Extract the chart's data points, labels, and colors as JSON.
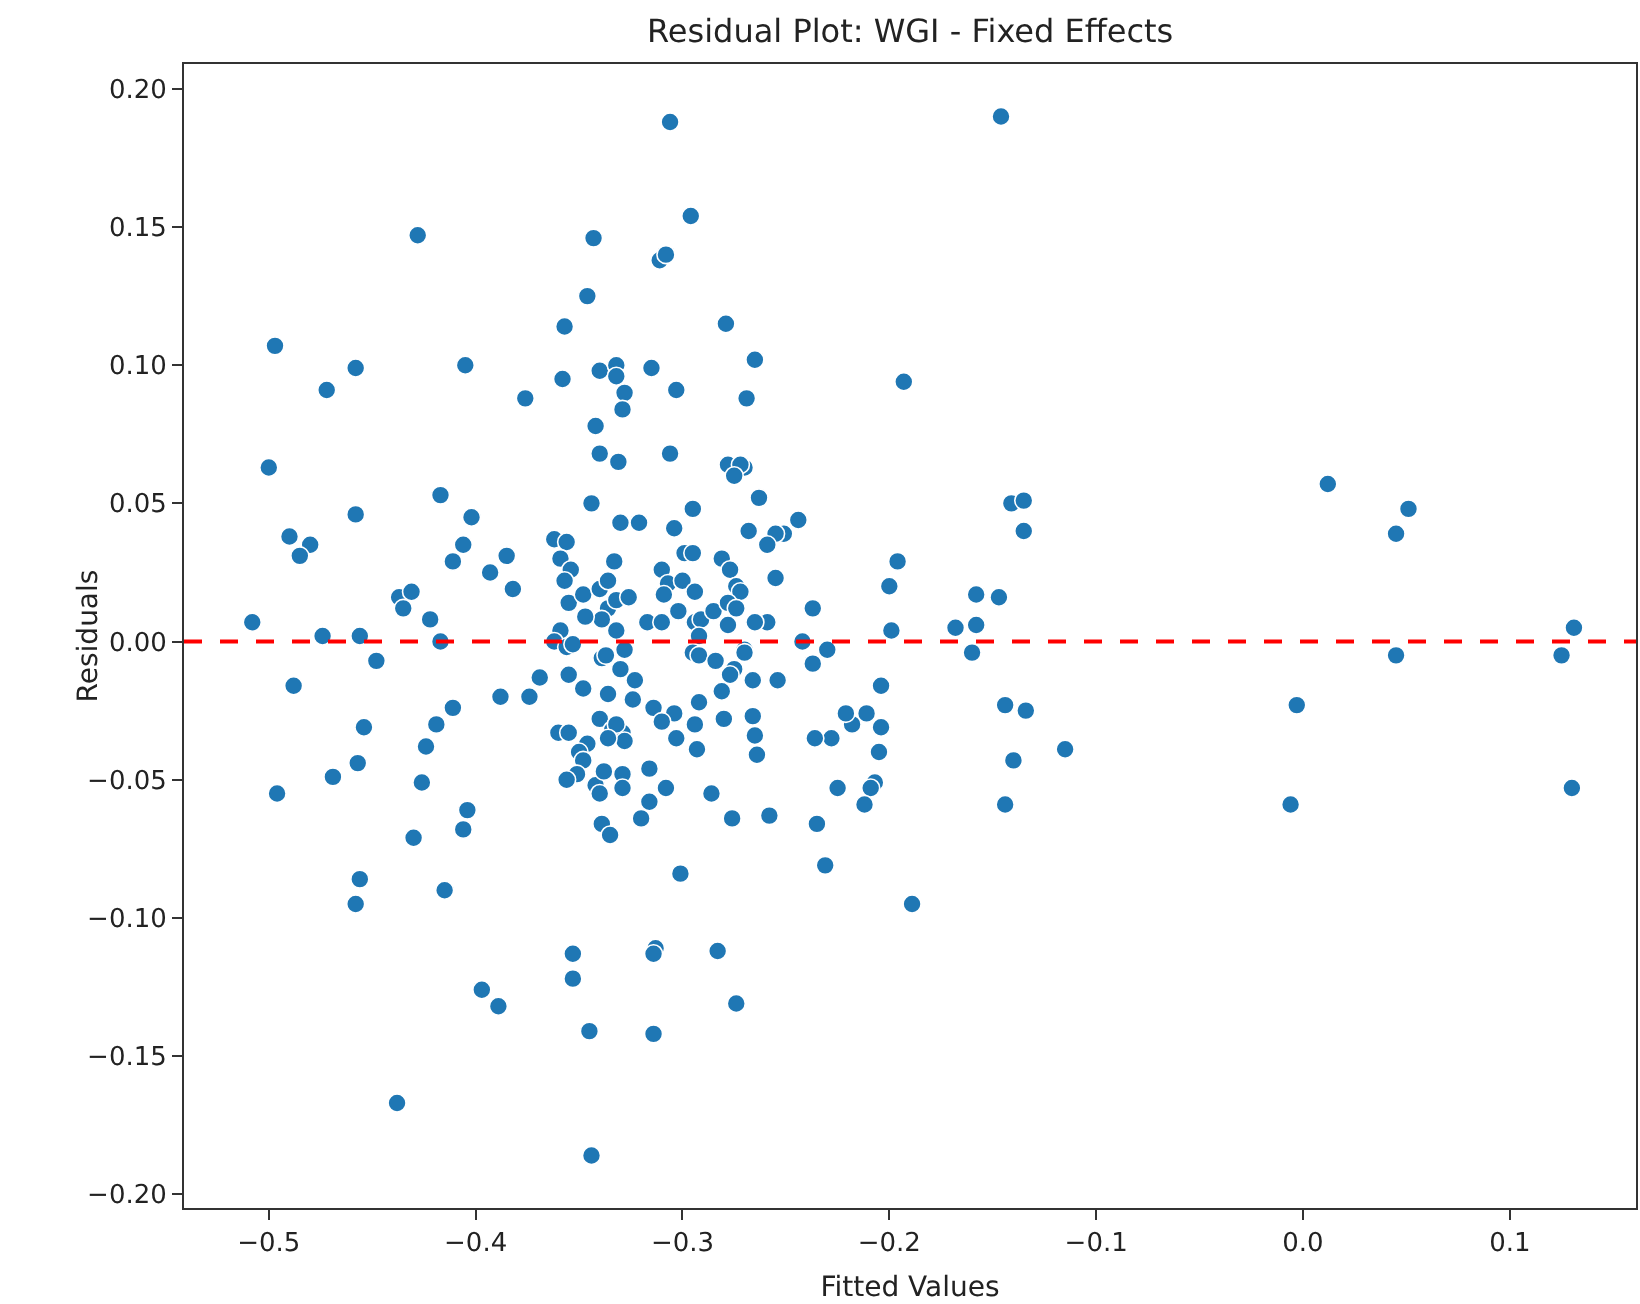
{
  "chart_data": {
    "type": "scatter",
    "title": "Residual Plot: WGI - Fixed Effects",
    "xlabel": "Fitted Values",
    "ylabel": "Residuals",
    "xlim": [
      -0.541,
      0.161
    ],
    "xticks": [
      {
        "value": -0.5,
        "label": "−0.5"
      },
      {
        "value": -0.4,
        "label": "−0.4"
      },
      {
        "value": -0.3,
        "label": "−0.3"
      },
      {
        "value": -0.2,
        "label": "−0.2"
      },
      {
        "value": -0.1,
        "label": "−0.1"
      },
      {
        "value": 0,
        "label": "0.0"
      },
      {
        "value": 0.1,
        "label": "0.1"
      }
    ],
    "ylim": [
      -0.205,
      0.209
    ],
    "yticks": [
      {
        "value": -0.2,
        "label": "−0.20"
      },
      {
        "value": -0.15,
        "label": "−0.15"
      },
      {
        "value": -0.1,
        "label": "−0.10"
      },
      {
        "value": -0.05,
        "label": "−0.05"
      },
      {
        "value": 0,
        "label": "0.00"
      },
      {
        "value": 0.05,
        "label": "0.05"
      },
      {
        "value": 0.1,
        "label": "0.10"
      },
      {
        "value": 0.15,
        "label": "0.15"
      },
      {
        "value": 0.2,
        "label": "0.20"
      }
    ],
    "grid": false,
    "marker": "circle",
    "ref_lines": [
      {
        "axis": "y",
        "value": 0,
        "color": "#ff0000",
        "line_style": "dashed"
      }
    ],
    "series": [
      {
        "color": "#1f77b4",
        "x": [
          -0.497,
          -0.458,
          -0.472,
          -0.405,
          -0.376,
          -0.5,
          -0.458,
          -0.417,
          -0.402,
          -0.406,
          -0.411,
          -0.49,
          -0.48,
          -0.485,
          -0.385,
          -0.393,
          -0.382,
          -0.437,
          -0.431,
          -0.435,
          -0.422,
          -0.508,
          -0.474,
          -0.456,
          -0.417,
          -0.448,
          -0.488,
          -0.369,
          -0.388,
          -0.374,
          -0.411,
          -0.419,
          -0.424,
          -0.454,
          -0.457,
          -0.469,
          -0.426,
          -0.496,
          -0.404,
          -0.406,
          -0.43,
          -0.456,
          -0.458,
          -0.415,
          -0.397,
          -0.389,
          -0.438,
          -0.428,
          -0.265,
          -0.193,
          -0.196,
          -0.2,
          -0.199,
          -0.204,
          -0.204,
          -0.205,
          -0.207,
          -0.209,
          -0.212,
          -0.211,
          -0.218,
          -0.221,
          -0.228,
          -0.236,
          -0.225,
          -0.235,
          -0.231,
          -0.189,
          -0.237,
          -0.242,
          -0.237,
          -0.23,
          -0.244,
          -0.251,
          -0.255,
          -0.259,
          -0.255,
          -0.263,
          -0.268,
          -0.27,
          -0.269,
          -0.259,
          -0.265,
          -0.27,
          -0.254,
          -0.266,
          -0.266,
          -0.265,
          -0.264,
          -0.258,
          -0.168,
          -0.16,
          -0.158,
          -0.158,
          -0.147,
          -0.146,
          -0.141,
          -0.135,
          -0.135,
          -0.144,
          -0.134,
          -0.14,
          -0.144,
          -0.115,
          -0.003,
          -0.006,
          0.012,
          0.045,
          0.051,
          0.045,
          0.125,
          0.131,
          0.13,
          -0.306,
          -0.296,
          -0.343,
          -0.311,
          -0.308,
          -0.346,
          -0.357,
          -0.279,
          -0.358,
          -0.34,
          -0.332,
          -0.332,
          -0.328,
          -0.329,
          -0.315,
          -0.303,
          -0.342,
          -0.34,
          -0.331,
          -0.306,
          -0.278,
          -0.272,
          -0.275,
          -0.344,
          -0.33,
          -0.321,
          -0.304,
          -0.295,
          -0.362,
          -0.356,
          -0.359,
          -0.354,
          -0.357,
          -0.355,
          -0.348,
          -0.34,
          -0.336,
          -0.333,
          -0.336,
          -0.332,
          -0.326,
          -0.339,
          -0.347,
          -0.332,
          -0.359,
          -0.362,
          -0.356,
          -0.353,
          -0.355,
          -0.348,
          -0.339,
          -0.337,
          -0.328,
          -0.33,
          -0.336,
          -0.323,
          -0.324,
          -0.31,
          -0.307,
          -0.3,
          -0.299,
          -0.295,
          -0.309,
          -0.302,
          -0.294,
          -0.317,
          -0.31,
          -0.294,
          -0.291,
          -0.285,
          -0.281,
          -0.277,
          -0.274,
          -0.272,
          -0.278,
          -0.274,
          -0.278,
          -0.292,
          -0.295,
          -0.292,
          -0.284,
          -0.275,
          -0.27,
          -0.277,
          -0.281,
          -0.292,
          -0.304,
          -0.314,
          -0.31,
          -0.294,
          -0.28,
          -0.303,
          -0.293,
          -0.34,
          -0.334,
          -0.329,
          -0.332,
          -0.328,
          -0.336,
          -0.346,
          -0.35,
          -0.348,
          -0.36,
          -0.355,
          -0.351,
          -0.356,
          -0.342,
          -0.34,
          -0.338,
          -0.329,
          -0.329,
          -0.339,
          -0.335,
          -0.316,
          -0.308,
          -0.316,
          -0.32,
          -0.286,
          -0.276,
          -0.301,
          -0.353,
          -0.353,
          -0.313,
          -0.314,
          -0.283,
          -0.345,
          -0.314,
          -0.274,
          -0.344
        ],
        "values": [
          0.107,
          0.099,
          0.091,
          0.1,
          0.088,
          0.063,
          0.046,
          0.053,
          0.045,
          0.035,
          0.029,
          0.038,
          0.035,
          0.031,
          0.031,
          0.025,
          0.019,
          0.016,
          0.018,
          0.012,
          0.008,
          0.007,
          0.002,
          0.002,
          0.0,
          -0.007,
          -0.016,
          -0.013,
          -0.02,
          -0.02,
          -0.024,
          -0.03,
          -0.038,
          -0.031,
          -0.044,
          -0.049,
          -0.051,
          -0.055,
          -0.061,
          -0.068,
          -0.071,
          -0.086,
          -0.095,
          -0.09,
          -0.126,
          -0.132,
          -0.167,
          0.147,
          0.102,
          0.094,
          0.029,
          0.02,
          0.004,
          -0.016,
          -0.031,
          -0.04,
          -0.051,
          -0.053,
          -0.059,
          -0.026,
          -0.03,
          -0.026,
          -0.035,
          -0.035,
          -0.053,
          -0.066,
          -0.081,
          -0.095,
          0.012,
          0.0,
          -0.008,
          -0.003,
          0.044,
          0.039,
          0.039,
          0.035,
          0.023,
          0.052,
          0.04,
          0.063,
          0.088,
          0.007,
          0.007,
          -0.003,
          -0.014,
          -0.014,
          -0.027,
          -0.034,
          -0.041,
          -0.063,
          0.005,
          -0.004,
          0.017,
          0.006,
          0.016,
          0.19,
          0.05,
          0.051,
          0.04,
          -0.023,
          -0.025,
          -0.043,
          -0.059,
          -0.039,
          -0.023,
          -0.059,
          0.057,
          0.039,
          0.048,
          -0.005,
          -0.005,
          0.005,
          -0.053,
          0.188,
          0.154,
          0.146,
          0.138,
          0.14,
          0.125,
          0.114,
          0.115,
          0.095,
          0.098,
          0.1,
          0.096,
          0.09,
          0.084,
          0.099,
          0.091,
          0.078,
          0.068,
          0.065,
          0.068,
          0.064,
          0.064,
          0.06,
          0.05,
          0.043,
          0.043,
          0.041,
          0.048,
          0.037,
          0.036,
          0.03,
          0.026,
          0.022,
          0.014,
          0.017,
          0.019,
          0.022,
          0.029,
          0.012,
          0.015,
          0.016,
          0.008,
          0.009,
          0.004,
          0.004,
          0.0,
          -0.002,
          -0.001,
          -0.012,
          -0.017,
          -0.006,
          -0.005,
          -0.003,
          -0.01,
          -0.019,
          -0.014,
          -0.021,
          0.026,
          0.021,
          0.022,
          0.032,
          0.032,
          0.017,
          0.011,
          0.018,
          0.007,
          0.007,
          0.007,
          0.008,
          0.011,
          0.03,
          0.026,
          0.02,
          0.018,
          0.014,
          0.012,
          0.006,
          0.002,
          -0.004,
          -0.005,
          -0.007,
          -0.01,
          -0.004,
          -0.012,
          -0.018,
          -0.022,
          -0.026,
          -0.024,
          -0.029,
          -0.03,
          -0.028,
          -0.035,
          -0.039,
          -0.028,
          -0.032,
          -0.033,
          -0.03,
          -0.036,
          -0.035,
          -0.037,
          -0.04,
          -0.043,
          -0.033,
          -0.033,
          -0.048,
          -0.05,
          -0.052,
          -0.055,
          -0.047,
          -0.048,
          -0.053,
          -0.066,
          -0.07,
          -0.046,
          -0.053,
          -0.058,
          -0.064,
          -0.055,
          -0.064,
          -0.084,
          -0.113,
          -0.122,
          -0.111,
          -0.113,
          -0.112,
          -0.141,
          -0.142,
          -0.131,
          -0.186
        ]
      }
    ]
  }
}
